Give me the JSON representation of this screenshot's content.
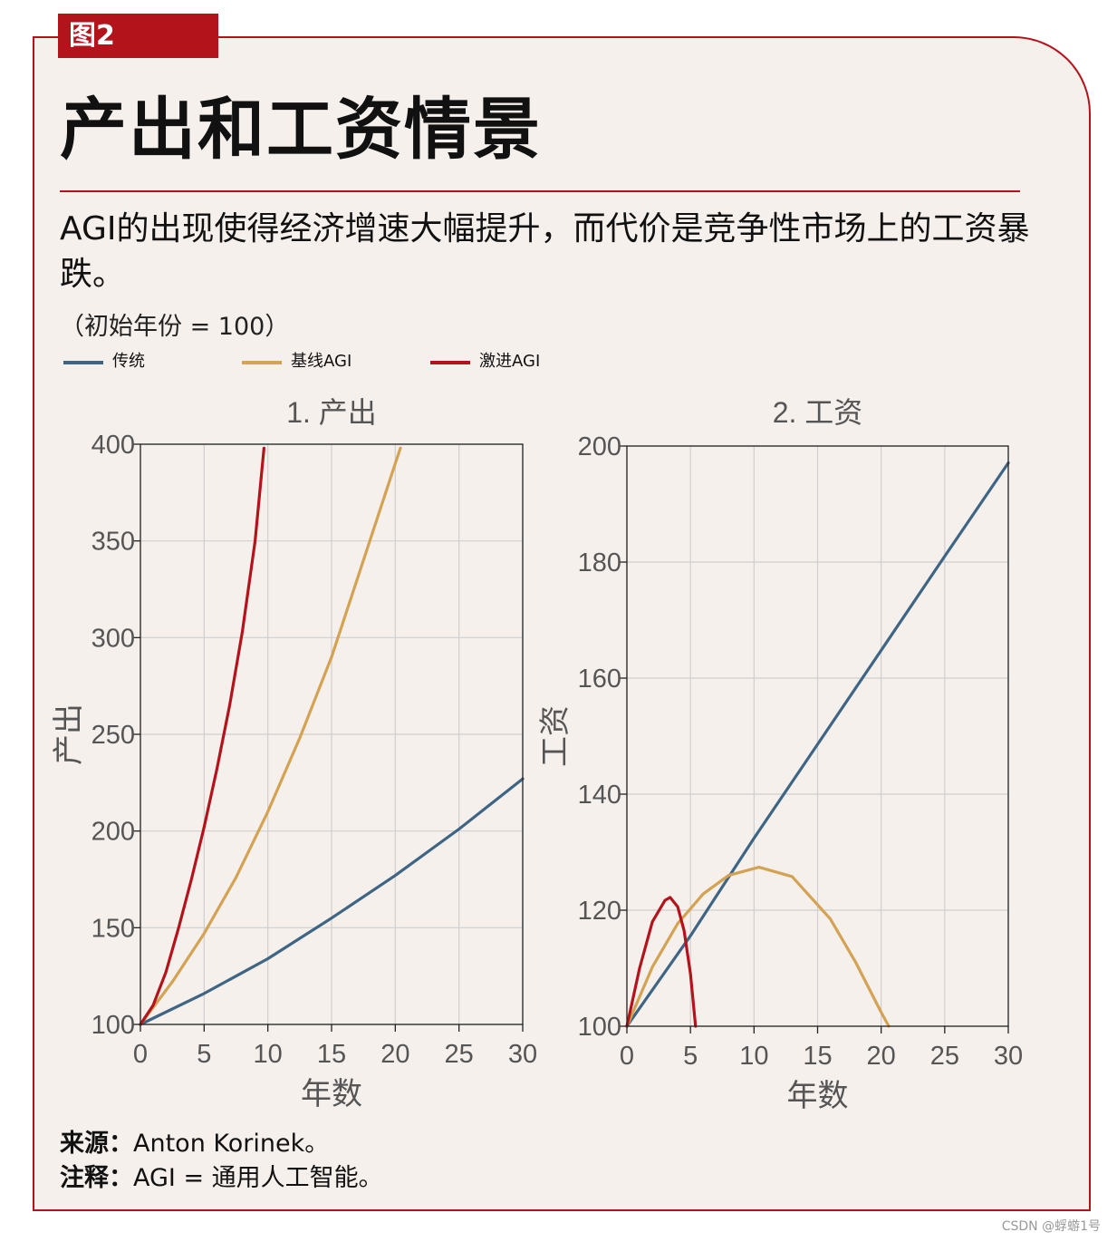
{
  "figure_tag": "图2",
  "title": "产出和工资情景",
  "subtitle": "AGI的出现使得经济增速大幅提升，而代价是竞争性市场上的工资暴跌。",
  "unit_note": "（初始年份 = 100）",
  "legend": [
    {
      "label": "传统",
      "color": "#3f6584"
    },
    {
      "label": "基线AGI",
      "color": "#d3a252"
    },
    {
      "label": "激进AGI",
      "color": "#b3141c"
    }
  ],
  "source_label": "来源：",
  "source_text": "Anton Korinek。",
  "note_label": "注释：",
  "note_text": "AGI = 通用人工智能。",
  "watermark": "CSDN @蜉蝣1号",
  "chart_data": [
    {
      "type": "line",
      "title": "1. 产出",
      "xlabel": "年数",
      "ylabel": "产出",
      "xlim": [
        0,
        30
      ],
      "ylim": [
        100,
        400
      ],
      "xticks": [
        0,
        5,
        10,
        15,
        20,
        25,
        30
      ],
      "yticks": [
        100,
        150,
        200,
        250,
        300,
        350,
        400
      ],
      "grid": true,
      "series": [
        {
          "name": "传统",
          "color": "#3f6584",
          "x": [
            0,
            5,
            10,
            15,
            20,
            25,
            30
          ],
          "y": [
            100,
            116,
            134,
            155,
            177,
            201,
            227
          ]
        },
        {
          "name": "基线AGI",
          "color": "#d3a252",
          "x": [
            0,
            2.5,
            5,
            7.5,
            10,
            12.5,
            15,
            17.5,
            20,
            20.4
          ],
          "y": [
            100,
            122,
            147,
            176,
            210,
            248,
            290,
            340,
            390,
            398
          ]
        },
        {
          "name": "激进AGI",
          "color": "#b3141c",
          "x": [
            0,
            1,
            2,
            3,
            4,
            5,
            6,
            7,
            8,
            9,
            9.7
          ],
          "y": [
            100,
            110,
            127,
            150,
            175,
            202,
            232,
            265,
            303,
            350,
            398
          ]
        }
      ]
    },
    {
      "type": "line",
      "title": "2. 工资",
      "xlabel": "年数",
      "ylabel": "工资",
      "xlim": [
        0,
        30
      ],
      "ylim": [
        100,
        200
      ],
      "xticks": [
        0,
        5,
        10,
        15,
        20,
        25,
        30
      ],
      "yticks": [
        100,
        120,
        140,
        160,
        180,
        200
      ],
      "grid": true,
      "series": [
        {
          "name": "传统",
          "color": "#3f6584",
          "x": [
            0,
            5,
            10,
            15,
            20,
            25,
            30
          ],
          "y": [
            100,
            115.6,
            132.4,
            148.6,
            164.8,
            181.0,
            197.1
          ]
        },
        {
          "name": "基线AGI",
          "color": "#d3a252",
          "x": [
            0,
            2,
            4,
            6,
            8,
            10.4,
            13,
            16,
            18,
            20,
            20.6
          ],
          "y": [
            100,
            110.2,
            117.7,
            122.8,
            126.0,
            127.4,
            125.8,
            118.5,
            111.0,
            102.4,
            100
          ]
        },
        {
          "name": "激进AGI",
          "color": "#b3141c",
          "x": [
            0,
            1,
            2,
            3,
            3.4,
            4,
            4.5,
            5,
            5.4
          ],
          "y": [
            100,
            110,
            118,
            121.7,
            122.2,
            120.6,
            116.5,
            109,
            100
          ]
        }
      ]
    }
  ]
}
